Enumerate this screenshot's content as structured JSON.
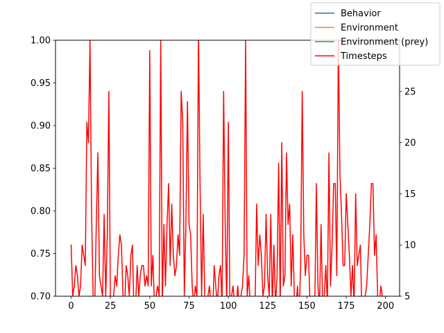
{
  "chart_data": {
    "type": "line",
    "title": "",
    "xlabel": "",
    "ylabel": "",
    "y2label": "",
    "xlim": [
      -9.95,
      208.95
    ],
    "ylim": [
      0.7,
      1.0
    ],
    "y2lim": [
      5,
      30
    ],
    "x_ticks": [
      0,
      25,
      50,
      75,
      100,
      125,
      150,
      175,
      200
    ],
    "y_ticks": [
      0.7,
      0.75,
      0.8,
      0.85,
      0.9,
      0.95,
      1.0
    ],
    "y_tick_labels": [
      "0.70",
      "0.75",
      "0.80",
      "0.85",
      "0.90",
      "0.95",
      "1.00"
    ],
    "y2_ticks": [
      5,
      10,
      15,
      20,
      25
    ],
    "legend_position": "top-right",
    "grid": false,
    "series": [
      {
        "name": "Behavior",
        "color": "#1f77b4",
        "axis": "left",
        "x": [],
        "values": []
      },
      {
        "name": "Environment",
        "color": "#ff7f0e",
        "axis": "left",
        "x": [],
        "values": []
      },
      {
        "name": "Environment (prey)",
        "color": "#2ca02c",
        "axis": "left",
        "x": [],
        "values": []
      },
      {
        "name": "Timesteps",
        "color": "#ff0000",
        "axis": "right",
        "x": [
          0,
          1,
          2,
          3,
          4,
          5,
          6,
          7,
          8,
          9,
          10,
          11,
          12,
          13,
          14,
          15,
          16,
          17,
          18,
          19,
          20,
          21,
          22,
          23,
          24,
          25,
          26,
          27,
          28,
          29,
          30,
          31,
          32,
          33,
          34,
          35,
          36,
          37,
          38,
          39,
          40,
          41,
          42,
          43,
          44,
          45,
          46,
          47,
          48,
          49,
          50,
          51,
          52,
          53,
          54,
          55,
          56,
          57,
          58,
          59,
          60,
          61,
          62,
          63,
          64,
          65,
          66,
          67,
          68,
          69,
          70,
          71,
          72,
          73,
          74,
          75,
          76,
          77,
          78,
          79,
          80,
          81,
          82,
          83,
          84,
          85,
          86,
          87,
          88,
          89,
          90,
          91,
          92,
          93,
          94,
          95,
          96,
          97,
          98,
          99,
          100,
          101,
          102,
          103,
          104,
          105,
          106,
          107,
          108,
          109,
          110,
          111,
          112,
          113,
          114,
          115,
          116,
          117,
          118,
          119,
          120,
          121,
          122,
          123,
          124,
          125,
          126,
          127,
          128,
          129,
          130,
          131,
          132,
          133,
          134,
          135,
          136,
          137,
          138,
          139,
          140,
          141,
          142,
          143,
          144,
          145,
          146,
          147,
          148,
          149,
          150,
          151,
          152,
          153,
          154,
          155,
          156,
          157,
          158,
          159,
          160,
          161,
          162,
          163,
          164,
          165,
          166,
          167,
          168,
          169,
          170,
          171,
          172,
          173,
          174,
          175,
          176,
          177,
          178,
          179,
          180,
          181,
          182,
          183,
          184,
          185,
          186,
          187,
          188,
          189,
          190,
          191,
          192,
          193,
          194,
          195,
          196,
          197,
          198
        ],
        "values": [
          10,
          5,
          6,
          8,
          7,
          5,
          6,
          10,
          9,
          8,
          22,
          20,
          30,
          13,
          5,
          4,
          12,
          19,
          7,
          6,
          5,
          13,
          5,
          11,
          25,
          4,
          3,
          5,
          7,
          6,
          9,
          11,
          10,
          5,
          4,
          8,
          7,
          5,
          9,
          10,
          3,
          4,
          8,
          5,
          7,
          8,
          8,
          6,
          7,
          6,
          29,
          6,
          9,
          4,
          5,
          6,
          5,
          30,
          4,
          12,
          6,
          12,
          16,
          8,
          14,
          9,
          7,
          8,
          11,
          9,
          25,
          22,
          5,
          12,
          24,
          12,
          11,
          6,
          4,
          6,
          5,
          31,
          16,
          5,
          13,
          5,
          4,
          5,
          6,
          4,
          3,
          8,
          6,
          4,
          7,
          8,
          4,
          25,
          12,
          4,
          22,
          4,
          5,
          6,
          4,
          4,
          6,
          4,
          5,
          6,
          9,
          30,
          5,
          7,
          4,
          3,
          5,
          4,
          14,
          8,
          11,
          9,
          5,
          6,
          13,
          7,
          5,
          13,
          4,
          10,
          4,
          7,
          18,
          4,
          20,
          6,
          7,
          19,
          12,
          14,
          6,
          11,
          5,
          4,
          6,
          3,
          8,
          25,
          11,
          7,
          9,
          9,
          4,
          5,
          5,
          4,
          16,
          6,
          4,
          12,
          4,
          5,
          8,
          4,
          19,
          6,
          10,
          16,
          16,
          7,
          30,
          17,
          13,
          8,
          8,
          15,
          12,
          9,
          5,
          8,
          4,
          15,
          8,
          9,
          10,
          3,
          4,
          5,
          6,
          9,
          12,
          16,
          16,
          9,
          11,
          5,
          4,
          6,
          5
        ]
      }
    ]
  }
}
